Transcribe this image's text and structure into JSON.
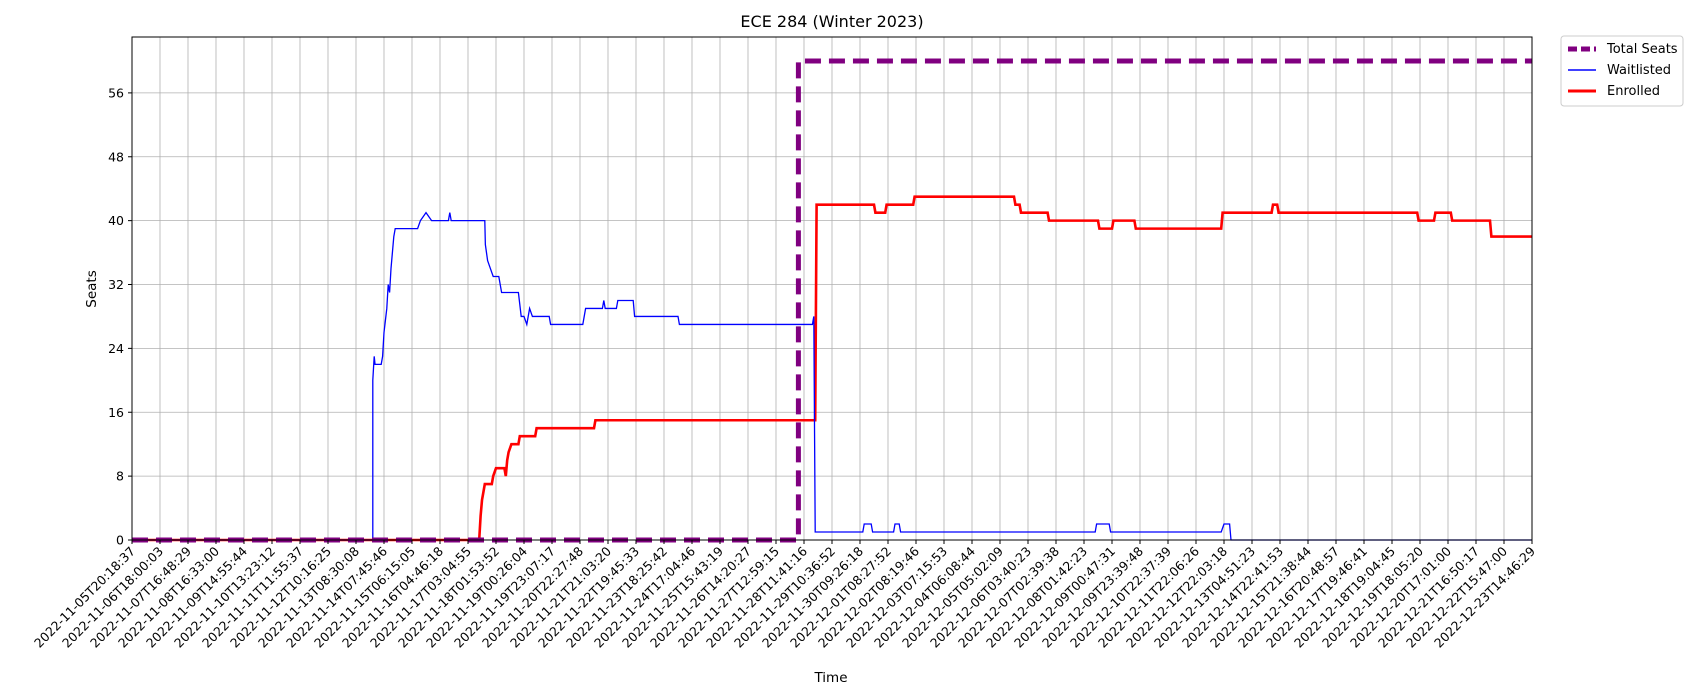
{
  "chart_data": {
    "type": "line",
    "title": "ECE 284 (Winter 2023)",
    "xlabel": "Time",
    "ylabel": "Seats",
    "ylim": [
      0,
      63
    ],
    "yticks": [
      0,
      8,
      16,
      24,
      32,
      40,
      48,
      56
    ],
    "grid": true,
    "legend_position": "outside-top-right",
    "x_categories": [
      "2022-11-05T20:18:37",
      "2022-11-06T18:00:03",
      "2022-11-07T16:48:29",
      "2022-11-08T16:33:00",
      "2022-11-09T14:55:44",
      "2022-11-10T13:23:12",
      "2022-11-11T11:55:37",
      "2022-11-12T10:16:25",
      "2022-11-13T08:30:08",
      "2022-11-14T07:45:46",
      "2022-11-15T06:15:05",
      "2022-11-16T04:46:18",
      "2022-11-17T03:04:55",
      "2022-11-18T01:53:52",
      "2022-11-19T00:26:04",
      "2022-11-19T23:07:17",
      "2022-11-20T22:27:48",
      "2022-11-21T21:03:20",
      "2022-11-22T19:45:33",
      "2022-11-23T18:25:42",
      "2022-11-24T17:04:46",
      "2022-11-25T15:43:19",
      "2022-11-26T14:20:27",
      "2022-11-27T12:59:15",
      "2022-11-28T11:41:16",
      "2022-11-29T10:36:52",
      "2022-11-30T09:26:18",
      "2022-12-01T08:27:52",
      "2022-12-02T08:19:46",
      "2022-12-03T07:15:53",
      "2022-12-04T06:08:44",
      "2022-12-05T05:02:09",
      "2022-12-06T03:40:23",
      "2022-12-07T02:39:38",
      "2022-12-08T01:42:23",
      "2022-12-09T00:47:31",
      "2022-12-09T23:39:48",
      "2022-12-10T22:37:39",
      "2022-12-11T22:06:26",
      "2022-12-12T22:03:18",
      "2022-12-13T04:51:23",
      "2022-12-14T22:41:53",
      "2022-12-15T21:38:44",
      "2022-12-16T20:48:57",
      "2022-12-17T19:46:41",
      "2022-12-18T19:04:45",
      "2022-12-19T18:05:20",
      "2022-12-20T17:01:00",
      "2022-12-21T16:50:17",
      "2022-12-22T15:47:00",
      "2022-12-23T14:46:29"
    ],
    "series": [
      {
        "name": "Total Seats",
        "color": "#800080",
        "style": "dashed",
        "points": [
          [
            0,
            0
          ],
          [
            23.8,
            0
          ],
          [
            23.8,
            60
          ],
          [
            50,
            60
          ]
        ]
      },
      {
        "name": "Waitlisted",
        "color": "#0000ff",
        "style": "solid",
        "points": [
          [
            0,
            0
          ],
          [
            8.6,
            0
          ],
          [
            8.6,
            20
          ],
          [
            8.65,
            23
          ],
          [
            8.68,
            22
          ],
          [
            8.9,
            22
          ],
          [
            8.95,
            23
          ],
          [
            9.0,
            26
          ],
          [
            9.1,
            29
          ],
          [
            9.15,
            32
          ],
          [
            9.2,
            31
          ],
          [
            9.25,
            34
          ],
          [
            9.35,
            38
          ],
          [
            9.4,
            39
          ],
          [
            9.5,
            39
          ],
          [
            10.2,
            39
          ],
          [
            10.3,
            40
          ],
          [
            10.5,
            41
          ],
          [
            10.7,
            40
          ],
          [
            11.3,
            40
          ],
          [
            11.35,
            41
          ],
          [
            11.4,
            40
          ],
          [
            12.6,
            40
          ],
          [
            12.62,
            37
          ],
          [
            12.7,
            35
          ],
          [
            12.8,
            34
          ],
          [
            12.9,
            33
          ],
          [
            13.1,
            33
          ],
          [
            13.2,
            31
          ],
          [
            13.8,
            31
          ],
          [
            13.9,
            28
          ],
          [
            14.0,
            28
          ],
          [
            14.1,
            27
          ],
          [
            14.2,
            29
          ],
          [
            14.3,
            28
          ],
          [
            14.9,
            28
          ],
          [
            14.95,
            27
          ],
          [
            15.8,
            27
          ],
          [
            16.1,
            27
          ],
          [
            16.2,
            29
          ],
          [
            16.8,
            29
          ],
          [
            16.85,
            30
          ],
          [
            16.9,
            29
          ],
          [
            17.3,
            29
          ],
          [
            17.35,
            30
          ],
          [
            17.9,
            30
          ],
          [
            17.95,
            28
          ],
          [
            19.5,
            28
          ],
          [
            19.55,
            27
          ],
          [
            24.3,
            27
          ],
          [
            24.35,
            28
          ],
          [
            24.4,
            1
          ],
          [
            26.1,
            1
          ],
          [
            26.15,
            2
          ],
          [
            26.4,
            2
          ],
          [
            26.45,
            1
          ],
          [
            27.2,
            1
          ],
          [
            27.25,
            2
          ],
          [
            27.4,
            2
          ],
          [
            27.45,
            1
          ],
          [
            34.4,
            1
          ],
          [
            34.45,
            2
          ],
          [
            34.9,
            2
          ],
          [
            34.95,
            1
          ],
          [
            38.9,
            1
          ],
          [
            39.0,
            2
          ],
          [
            39.2,
            2
          ],
          [
            39.25,
            0
          ],
          [
            50,
            0
          ]
        ]
      },
      {
        "name": "Enrolled",
        "color": "#ff0000",
        "style": "solid",
        "points": [
          [
            0,
            0
          ],
          [
            12.4,
            0
          ],
          [
            12.45,
            3
          ],
          [
            12.5,
            5
          ],
          [
            12.55,
            6
          ],
          [
            12.6,
            7
          ],
          [
            12.85,
            7
          ],
          [
            12.9,
            8
          ],
          [
            13.0,
            9
          ],
          [
            13.3,
            9
          ],
          [
            13.35,
            8
          ],
          [
            13.4,
            10
          ],
          [
            13.45,
            11
          ],
          [
            13.55,
            12
          ],
          [
            13.8,
            12
          ],
          [
            13.85,
            13
          ],
          [
            14.4,
            13
          ],
          [
            14.45,
            14
          ],
          [
            16.5,
            14
          ],
          [
            16.55,
            15
          ],
          [
            24.4,
            15
          ],
          [
            24.45,
            42
          ],
          [
            26.5,
            42
          ],
          [
            26.55,
            41
          ],
          [
            26.9,
            41
          ],
          [
            26.95,
            42
          ],
          [
            27.9,
            42
          ],
          [
            27.95,
            43
          ],
          [
            31.5,
            43
          ],
          [
            31.55,
            42
          ],
          [
            31.7,
            42
          ],
          [
            31.75,
            41
          ],
          [
            32.7,
            41
          ],
          [
            32.75,
            40
          ],
          [
            34.5,
            40
          ],
          [
            34.55,
            39
          ],
          [
            35.0,
            39
          ],
          [
            35.05,
            40
          ],
          [
            35.8,
            40
          ],
          [
            35.85,
            39
          ],
          [
            38.9,
            39
          ],
          [
            38.95,
            41
          ],
          [
            40.7,
            41
          ],
          [
            40.75,
            42
          ],
          [
            40.9,
            42
          ],
          [
            40.95,
            41
          ],
          [
            45.9,
            41
          ],
          [
            45.95,
            40
          ],
          [
            46.5,
            40
          ],
          [
            46.55,
            41
          ],
          [
            47.1,
            41
          ],
          [
            47.15,
            40
          ],
          [
            48.5,
            40
          ],
          [
            48.55,
            38
          ],
          [
            50,
            38
          ]
        ]
      }
    ]
  },
  "legend": {
    "items": [
      {
        "label": "Total Seats",
        "color": "#800080",
        "style": "dashed"
      },
      {
        "label": "Waitlisted",
        "color": "#0000ff",
        "style": "solid"
      },
      {
        "label": "Enrolled",
        "color": "#ff0000",
        "style": "solid"
      }
    ]
  }
}
